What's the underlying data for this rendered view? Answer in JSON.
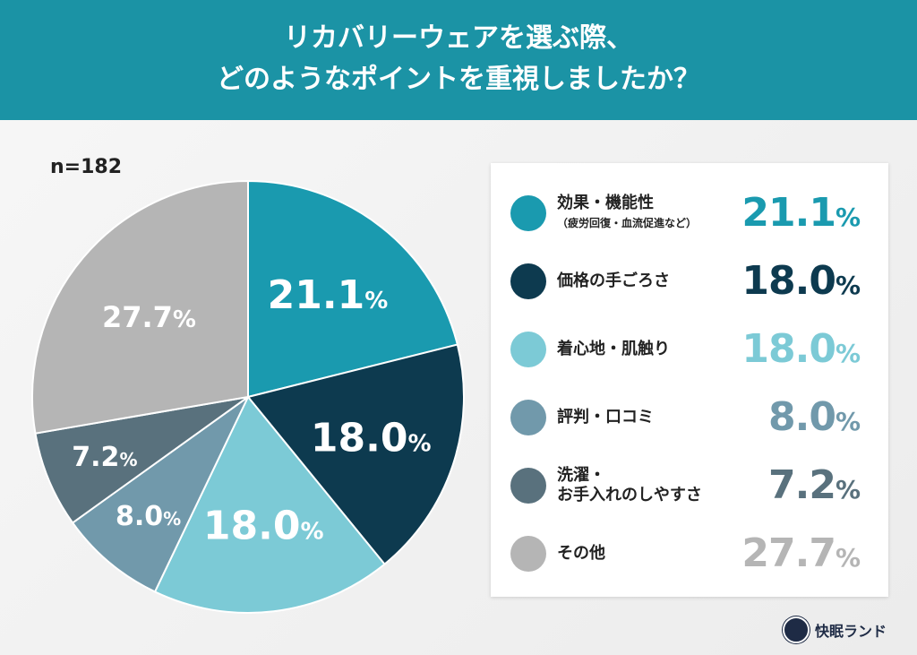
{
  "title_line1": "リカバリーウェアを選ぶ際、",
  "title_line2": "どのようなポイントを重視しましたか？",
  "sample": "n=182",
  "brand": "快眠ランド",
  "chart_data": {
    "type": "pie",
    "title": "リカバリーウェアを選ぶ際、どのようなポイントを重視しましたか？",
    "categories": [
      "効果・機能性",
      "価格の手ごろさ",
      "着心地・肌触り",
      "評判・口コミ",
      "洗濯・お手入れのしやすさ",
      "その他"
    ],
    "sublabels": [
      "（疲労回復・血流促進など）",
      "",
      "",
      "",
      "",
      ""
    ],
    "values": [
      21.1,
      18.0,
      18.0,
      8.0,
      7.2,
      27.7
    ],
    "labels": [
      "21.1",
      "18.0",
      "18.0",
      "8.0",
      "7.2",
      "27.7"
    ],
    "unit": "%",
    "colors": [
      "#1a9aaf",
      "#0d3a4f",
      "#7ccad6",
      "#7199ab",
      "#59717d",
      "#b5b5b5"
    ],
    "legend": "right"
  }
}
